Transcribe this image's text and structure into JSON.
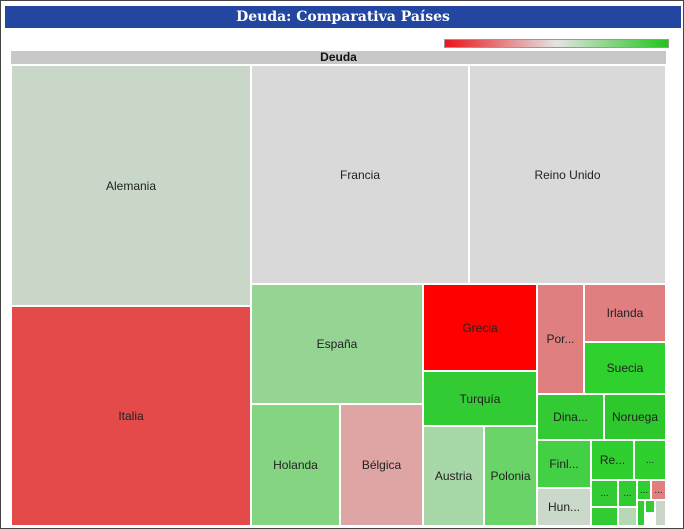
{
  "header": {
    "title": "Deuda: Comparativa Países"
  },
  "chart_data": {
    "type": "treemap",
    "root_label": "Deuda",
    "color_scale": {
      "low": "#e8161b",
      "mid": "#e4e4e4",
      "high": "#22c41c"
    },
    "nodes": [
      {
        "label": "Alemania",
        "color": "#c8d7c8"
      },
      {
        "label": "Francia",
        "color": "#d9d9d9"
      },
      {
        "label": "Reino Unido",
        "color": "#d9d9d9"
      },
      {
        "label": "Italia",
        "color": "#e44a4a"
      },
      {
        "label": "España",
        "color": "#95d493"
      },
      {
        "label": "Grecia",
        "color": "#ff0000"
      },
      {
        "label": "Por...",
        "color": "#e07f80"
      },
      {
        "label": "Irlanda",
        "color": "#e07f80"
      },
      {
        "label": "Turquía",
        "color": "#33cb33"
      },
      {
        "label": "Suecia",
        "color": "#2fd12f"
      },
      {
        "label": "Holanda",
        "color": "#84d482"
      },
      {
        "label": "Bélgica",
        "color": "#dfa4a4"
      },
      {
        "label": "Dina...",
        "color": "#33cb33"
      },
      {
        "label": "Noruega",
        "color": "#2cc82c"
      },
      {
        "label": "Austria",
        "color": "#a8d7a8"
      },
      {
        "label": "Polonia",
        "color": "#6ad468"
      },
      {
        "label": "Finl...",
        "color": "#44d044"
      },
      {
        "label": "Re...",
        "color": "#2fcf2f"
      },
      {
        "label": "...",
        "color": "#2fcf2f"
      },
      {
        "label": "Hun...",
        "color": "#cad9ca"
      },
      {
        "label": "...",
        "color": "#33cb33"
      },
      {
        "label": "...",
        "color": "#33cb33"
      },
      {
        "label": "...",
        "color": "#2fcf2f"
      },
      {
        "label": "...",
        "color": "#e07f80"
      },
      {
        "label": "",
        "color": "#33cb33"
      },
      {
        "label": "",
        "color": "#b6d8b6"
      },
      {
        "label": "",
        "color": "#33cb33"
      },
      {
        "label": "",
        "color": "#33cb33"
      },
      {
        "label": "",
        "color": "#c8d7c8"
      }
    ]
  }
}
